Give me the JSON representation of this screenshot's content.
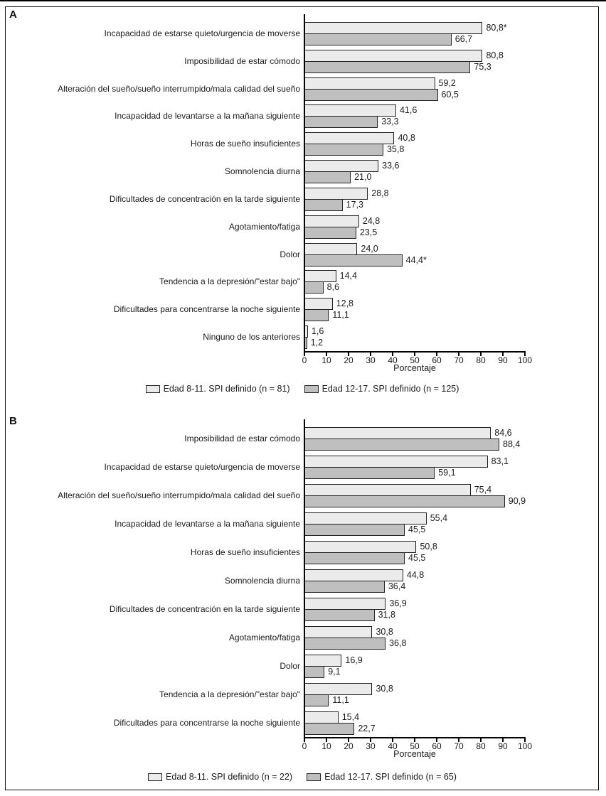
{
  "panels": [
    {
      "letter": "A"
    },
    {
      "letter": "B"
    }
  ],
  "colors": {
    "bar_light": "#ebebeb",
    "bar_dark": "#bfbfbf",
    "bar_border": "#222222",
    "axis": "#000000"
  },
  "chart_data": [
    {
      "type": "bar",
      "panel": "A",
      "orientation": "horizontal",
      "title": "",
      "xlabel": "Porcentaje",
      "xlim": [
        0,
        100
      ],
      "xticks": [
        0,
        10,
        20,
        30,
        40,
        50,
        60,
        70,
        80,
        90,
        100
      ],
      "grid": false,
      "legend_position": "bottom-center",
      "categories": [
        "Incapacidad de estarse quieto/urgencia de moverse",
        "Imposibilidad de estar cómodo",
        "Alteración del sueño/sueño interrumpido/mala calidad del sueño",
        "Incapacidad de levantarse a la mañana siguiente",
        "Horas de sueño insuficientes",
        "Somnolencia diurna",
        "Dificultades de concentración en la tarde siguiente",
        "Agotamiento/fatiga",
        "Dolor",
        "Tendencia a la depresión/\"estar bajo\"",
        "Dificultades para concentrarse la noche siguiente",
        "Ninguno de los anteriores"
      ],
      "series": [
        {
          "name": "Edad 8-11. SPI definido (n = 81)",
          "color": "#ebebeb",
          "values": [
            80.8,
            80.8,
            59.2,
            41.6,
            40.8,
            33.6,
            28.8,
            24.8,
            24.0,
            14.4,
            12.8,
            1.6
          ],
          "labels": [
            "80,8*",
            "80,8",
            "59,2",
            "41,6",
            "40,8",
            "33,6",
            "28,8",
            "24,8",
            "24,0",
            "14,4",
            "12,8",
            "1,6"
          ]
        },
        {
          "name": "Edad 12-17. SPI definido (n = 125)",
          "color": "#bfbfbf",
          "values": [
            66.7,
            75.3,
            60.5,
            33.3,
            35.8,
            21.0,
            17.3,
            23.5,
            44.4,
            8.6,
            11.1,
            1.2
          ],
          "labels": [
            "66,7",
            "75,3",
            "60,5",
            "33,3",
            "35,8",
            "21,0",
            "17,3",
            "23,5",
            "44,4*",
            "8,6",
            "11,1",
            "1,2"
          ]
        }
      ]
    },
    {
      "type": "bar",
      "panel": "B",
      "orientation": "horizontal",
      "title": "",
      "xlabel": "Porcentaje",
      "xlim": [
        0,
        100
      ],
      "xticks": [
        0,
        10,
        20,
        30,
        40,
        50,
        60,
        70,
        80,
        90,
        100
      ],
      "grid": false,
      "legend_position": "bottom-center",
      "categories": [
        "Imposibilidad de estar cómodo",
        "Incapacidad de estarse quieto/urgencia de moverse",
        "Alteración del sueño/sueño interrumpido/mala calidad del sueño",
        "Incapacidad de levantarse a la mañana siguiente",
        "Horas de sueño insuficientes",
        "Somnolencia diurna",
        "Dificultades de concentración en la tarde siguiente",
        "Agotamiento/fatiga",
        "Dolor",
        "Tendencia a la depresión/\"estar bajo\"",
        "Dificultades para concentrarse la noche siguiente"
      ],
      "series": [
        {
          "name": "Edad 8-11. SPI definido (n = 22)",
          "color": "#ebebeb",
          "values": [
            84.6,
            83.1,
            75.4,
            55.4,
            50.8,
            44.8,
            36.9,
            30.8,
            16.9,
            30.8,
            15.4
          ],
          "labels": [
            "84,6",
            "83,1",
            "75,4",
            "55,4",
            "50,8",
            "44,8",
            "36,9",
            "30,8",
            "16,9",
            "30,8",
            "15,4"
          ]
        },
        {
          "name": "Edad 12-17. SPI definido (n = 65)",
          "color": "#bfbfbf",
          "values": [
            88.4,
            59.1,
            90.9,
            45.5,
            45.5,
            36.4,
            31.8,
            36.8,
            9.1,
            11.1,
            22.7
          ],
          "labels": [
            "88,4",
            "59,1",
            "90,9",
            "45,5",
            "45,5",
            "36,4",
            "31,8",
            "36,8",
            "9,1",
            "11,1",
            "22,7"
          ]
        }
      ]
    }
  ]
}
